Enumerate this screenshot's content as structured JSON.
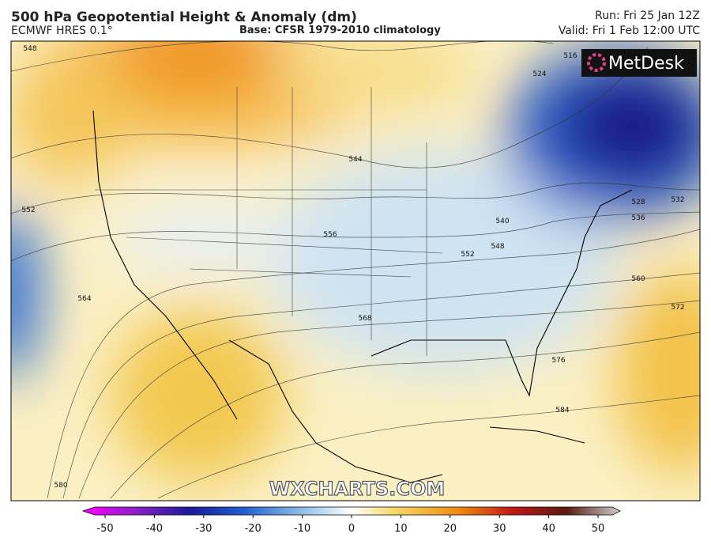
{
  "header": {
    "title": "500 hPa Geopotential Height & Anomaly (dm)",
    "model": "ECMWF HRES 0.1°",
    "base": "Base: CFSR 1979-2010 climatology",
    "run": "Run: Fri 25 Jan 12Z",
    "valid": "Valid: Fri 1 Feb 12:00 UTC"
  },
  "map": {
    "logo": "MetDesk",
    "watermark": "WXCHARTS.COM",
    "contour_labels": [
      548,
      516,
      524,
      544,
      552,
      556,
      540,
      548,
      552,
      528,
      532,
      536,
      560,
      564,
      568,
      572,
      576,
      584,
      580
    ]
  },
  "colorbar": {
    "range": [
      -50,
      50
    ],
    "ticks": [
      -50,
      -40,
      -30,
      -20,
      -10,
      0,
      10,
      20,
      30,
      40,
      50
    ]
  }
}
